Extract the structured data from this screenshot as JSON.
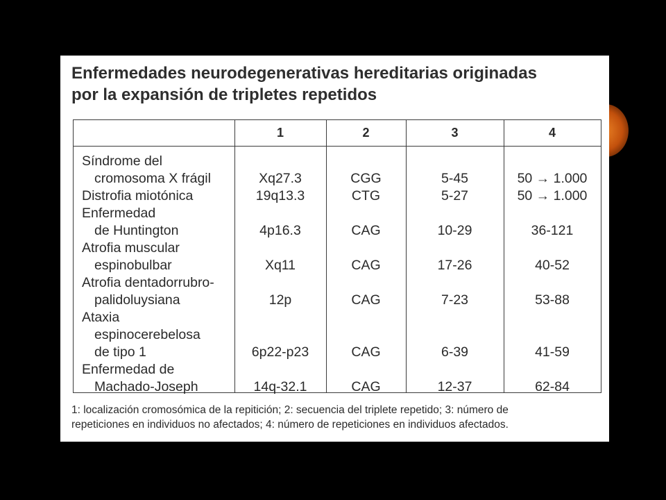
{
  "title": {
    "line1": "Enfermedades neurodegenerativas hereditarias originadas",
    "line2": "por la expansión de tripletes repetidos"
  },
  "table": {
    "headers": [
      "",
      "1",
      "2",
      "3",
      "4"
    ],
    "rows": [
      {
        "disease": [
          "Síndrome del",
          "cromosoma X frágil"
        ],
        "c1": "Xq27.3",
        "c2": "CGG",
        "c3": "5-45",
        "c4": "50 → 1.000"
      },
      {
        "disease": [
          "Distrofia miotónica"
        ],
        "c1": "19q13.3",
        "c2": "CTG",
        "c3": "5-27",
        "c4": "50 → 1.000"
      },
      {
        "disease": [
          "Enfermedad",
          "de Huntington"
        ],
        "c1": "4p16.3",
        "c2": "CAG",
        "c3": "10-29",
        "c4": "36-121"
      },
      {
        "disease": [
          "Atrofia muscular",
          "espinobulbar"
        ],
        "c1": "Xq11",
        "c2": "CAG",
        "c3": "17-26",
        "c4": "40-52"
      },
      {
        "disease": [
          "Atrofia dentadorrubro-",
          "palidoluysiana"
        ],
        "c1": "12p",
        "c2": "CAG",
        "c3": "7-23",
        "c4": "53-88"
      },
      {
        "disease": [
          "Ataxia",
          "espinocerebelosa",
          "de tipo 1"
        ],
        "c1": "6p22-p23",
        "c2": "CAG",
        "c3": "6-39",
        "c4": "41-59"
      },
      {
        "disease": [
          "Enfermedad de",
          "Machado-Joseph"
        ],
        "c1": "14q-32.1",
        "c2": "CAG",
        "c3": "12-37",
        "c4": "62-84"
      }
    ]
  },
  "footnote": {
    "line1": "1: localización cromosómica de la repitición; 2: secuencia del triplete repetido; 3: número de",
    "line2": "repeticiones en individuos no afectados; 4: número de repeticiones en individuos afectados."
  }
}
